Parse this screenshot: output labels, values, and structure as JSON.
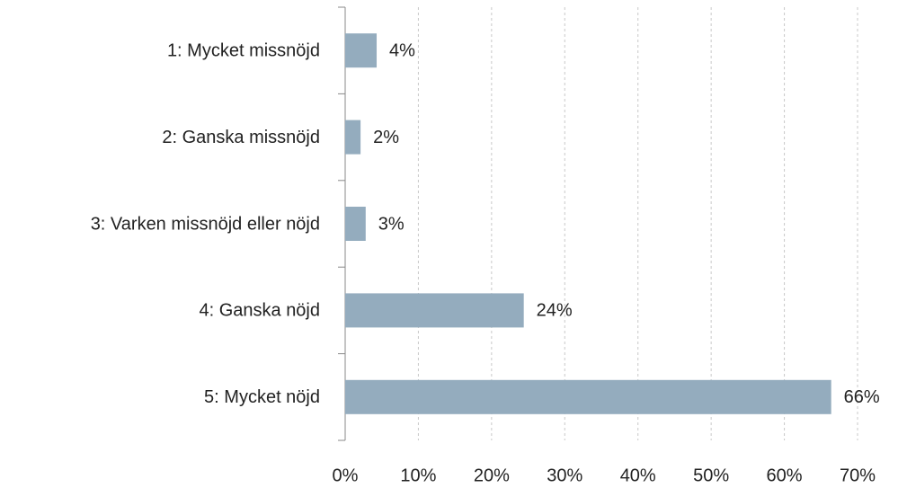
{
  "chart_data": {
    "type": "bar",
    "orientation": "horizontal",
    "categories": [
      "1: Mycket missnöjd",
      "2: Ganska missnöjd",
      "3: Varken missnöjd eller nöjd",
      "4: Ganska nöjd",
      "5: Mycket nöjd"
    ],
    "values": [
      4.3,
      2.1,
      2.8,
      24.4,
      66.4
    ],
    "value_labels": [
      "4%",
      "2%",
      "3%",
      "24%",
      "66%"
    ],
    "color": "#94acbe",
    "xlim": [
      0,
      70
    ],
    "xticks": [
      {
        "value": 0,
        "label": "0%"
      },
      {
        "value": 10,
        "label": "10%"
      },
      {
        "value": 20,
        "label": "20%"
      },
      {
        "value": 30,
        "label": "30%"
      },
      {
        "value": 40,
        "label": "40%"
      },
      {
        "value": 50,
        "label": "50%"
      },
      {
        "value": 60,
        "label": "60%"
      },
      {
        "value": 70,
        "label": "70%"
      }
    ],
    "grid": true
  }
}
